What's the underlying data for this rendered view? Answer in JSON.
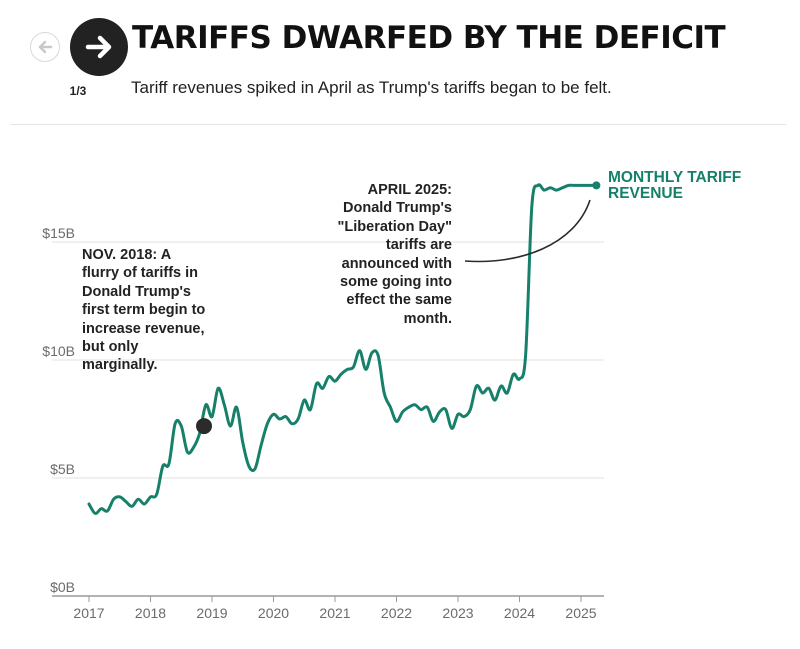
{
  "nav": {
    "prev_icon": "arrow-left-icon",
    "next_icon": "arrow-right-icon",
    "counter": "1/3"
  },
  "header": {
    "title": "TARIFFS DWARFED BY THE DEFICIT",
    "subtitle": "Tariff revenues spiked in April as Trump's tariffs began to be felt."
  },
  "colors": {
    "line": "#16806a",
    "label": "#16806a",
    "gridline": "#e0e0e0",
    "axis": "#999999",
    "marker": "#2b2b2b"
  },
  "chart_data": {
    "type": "line",
    "title": "",
    "xlabel": "",
    "ylabel": "",
    "x_ticks": [
      "2017",
      "2018",
      "2019",
      "2020",
      "2021",
      "2022",
      "2023",
      "2024",
      "2025"
    ],
    "y_ticks": [
      "$0B",
      "$5B",
      "$10B",
      "$15B"
    ],
    "xlim": [
      2017,
      2025.45
    ],
    "ylim": [
      0,
      17.5
    ],
    "grid": "horizontal",
    "series": [
      {
        "name": "MONTHLY TARIFF REVENUE",
        "x": [
          2017.0,
          2017.1,
          2017.2,
          2017.3,
          2017.4,
          2017.5,
          2017.6,
          2017.7,
          2017.8,
          2017.9,
          2018.0,
          2018.1,
          2018.2,
          2018.3,
          2018.4,
          2018.5,
          2018.6,
          2018.7,
          2018.8,
          2018.9,
          2019.0,
          2019.1,
          2019.2,
          2019.3,
          2019.4,
          2019.5,
          2019.6,
          2019.7,
          2019.8,
          2019.9,
          2020.0,
          2020.1,
          2020.2,
          2020.3,
          2020.4,
          2020.5,
          2020.6,
          2020.7,
          2020.8,
          2020.9,
          2021.0,
          2021.1,
          2021.2,
          2021.3,
          2021.4,
          2021.5,
          2021.6,
          2021.7,
          2021.8,
          2021.9,
          2022.0,
          2022.1,
          2022.2,
          2022.3,
          2022.4,
          2022.5,
          2022.6,
          2022.7,
          2022.8,
          2022.9,
          2023.0,
          2023.1,
          2023.2,
          2023.3,
          2023.4,
          2023.5,
          2023.6,
          2023.7,
          2023.8,
          2023.9,
          2024.0,
          2024.1,
          2024.2,
          2024.3,
          2024.4,
          2024.5,
          2024.6,
          2024.7,
          2024.8,
          2024.9,
          2025.0,
          2025.1,
          2025.2,
          2025.25
        ],
        "values": [
          3.9,
          3.5,
          3.7,
          3.6,
          4.1,
          4.2,
          4.0,
          3.8,
          4.1,
          3.9,
          4.2,
          4.3,
          5.5,
          5.6,
          7.3,
          7.2,
          6.1,
          6.3,
          6.9,
          8.1,
          7.6,
          8.8,
          8.1,
          7.2,
          8.0,
          6.5,
          5.5,
          5.4,
          6.4,
          7.3,
          7.7,
          7.5,
          7.6,
          7.3,
          7.5,
          8.3,
          7.9,
          9.0,
          8.8,
          9.3,
          9.1,
          9.4,
          9.6,
          9.7,
          10.4,
          9.6,
          10.3,
          10.2,
          8.6,
          8.0,
          7.4,
          7.8,
          8.0,
          8.1,
          7.9,
          8.0,
          7.4,
          7.8,
          7.9,
          7.1,
          7.7,
          7.6,
          7.9,
          8.9,
          8.6,
          8.8,
          8.3,
          8.9,
          8.6,
          9.4,
          9.2,
          10.2,
          16.5,
          17.4,
          17.2,
          17.3,
          17.2,
          17.3,
          17.4,
          17.4,
          17.4,
          17.4,
          17.4,
          17.4
        ]
      }
    ],
    "annotations": [
      {
        "x": 2018.87,
        "value": 7.2,
        "text": "NOV. 2018: A flurry of tariffs in Donald Trump's first term begin to increase revenue, but only marginally."
      },
      {
        "x": 2025.25,
        "value": 17.4,
        "text": "APRIL 2025: Donald Trump's \"Liberation Day\" tariffs are announced with some going into effect the same month."
      }
    ]
  }
}
